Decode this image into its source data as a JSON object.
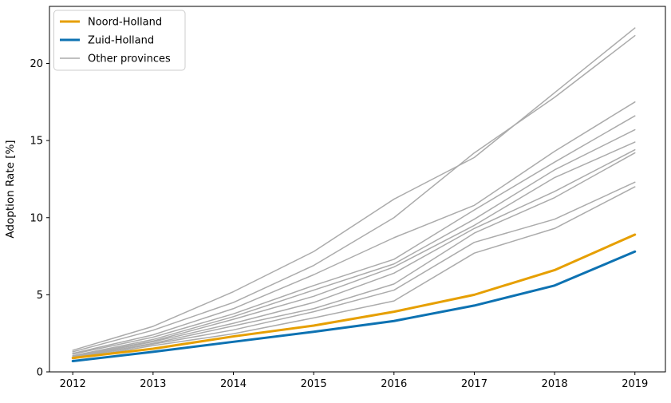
{
  "figure": {
    "ylabel": "Adoption Rate [%]"
  },
  "colors": {
    "noord_holland": "#E69F00",
    "zuid_holland": "#0D72B2",
    "other_provinces": "#ABABAB",
    "axis": "#000000",
    "legend_border": "#CCCCCC",
    "background": "#FFFFFF"
  },
  "chart_data": {
    "type": "line",
    "title": "",
    "xlabel": "",
    "ylabel": "Adoption Rate [%]",
    "x": [
      2012,
      2013,
      2014,
      2015,
      2016,
      2017,
      2018,
      2019
    ],
    "xticks": [
      "2012",
      "2013",
      "2014",
      "2015",
      "2016",
      "2017",
      "2018",
      "2019"
    ],
    "yticks": [
      "0",
      "5",
      "10",
      "15",
      "20"
    ],
    "ytick_values": [
      0,
      5,
      10,
      15,
      20
    ],
    "xlim": [
      2011.71,
      2019.38
    ],
    "ylim": [
      0,
      23.7
    ],
    "grid": false,
    "legend_position": "upper-left",
    "series": [
      {
        "name": "Noord-Holland",
        "color": "#E69F00",
        "width": 3,
        "zorder": 3,
        "values": [
          0.9,
          1.5,
          2.3,
          3.0,
          3.9,
          5.0,
          6.6,
          8.9
        ]
      },
      {
        "name": "Zuid-Holland",
        "color": "#0D72B2",
        "width": 3,
        "zorder": 2,
        "values": [
          0.7,
          1.3,
          1.95,
          2.6,
          3.3,
          4.3,
          5.6,
          7.8
        ]
      },
      {
        "name": "Other province 1",
        "color": "#ABABAB",
        "width": 1.5,
        "zorder": 1,
        "values": [
          1.4,
          2.95,
          5.2,
          7.8,
          11.2,
          13.9,
          18.1,
          22.3
        ]
      },
      {
        "name": "Other province 2",
        "color": "#ABABAB",
        "width": 1.5,
        "zorder": 1,
        "values": [
          1.3,
          2.7,
          4.5,
          6.9,
          10.0,
          14.2,
          17.8,
          21.8
        ]
      },
      {
        "name": "Other province 3",
        "color": "#ABABAB",
        "width": 1.5,
        "zorder": 1,
        "values": [
          1.2,
          2.4,
          4.1,
          6.3,
          8.7,
          10.8,
          14.3,
          17.5
        ]
      },
      {
        "name": "Other province 4",
        "color": "#ABABAB",
        "width": 1.5,
        "zorder": 1,
        "values": [
          1.15,
          2.25,
          3.76,
          5.6,
          7.3,
          10.5,
          13.6,
          16.6
        ]
      },
      {
        "name": "Other province 5",
        "color": "#ABABAB",
        "width": 1.5,
        "zorder": 1,
        "values": [
          1.05,
          2.1,
          3.58,
          5.3,
          7.0,
          9.9,
          13.1,
          15.7
        ]
      },
      {
        "name": "Other province 6",
        "color": "#ABABAB",
        "width": 1.5,
        "zorder": 1,
        "values": [
          1.0,
          2.0,
          3.41,
          4.9,
          6.8,
          9.5,
          12.6,
          14.9
        ]
      },
      {
        "name": "Other province 7",
        "color": "#ABABAB",
        "width": 1.5,
        "zorder": 1,
        "values": [
          0.95,
          1.95,
          3.15,
          4.5,
          6.4,
          9.3,
          11.7,
          14.4
        ]
      },
      {
        "name": "Other province 8",
        "color": "#ABABAB",
        "width": 1.5,
        "zorder": 1,
        "values": [
          0.92,
          1.85,
          2.98,
          4.1,
          5.7,
          9.0,
          11.3,
          14.2
        ]
      },
      {
        "name": "Other province 9",
        "color": "#ABABAB",
        "width": 1.5,
        "zorder": 1,
        "values": [
          0.9,
          1.8,
          2.72,
          3.9,
          5.3,
          8.4,
          9.9,
          12.3
        ]
      },
      {
        "name": "Other province 10",
        "color": "#ABABAB",
        "width": 1.5,
        "zorder": 1,
        "values": [
          0.85,
          1.7,
          2.47,
          3.5,
          4.6,
          7.7,
          9.3,
          12.0
        ]
      }
    ],
    "legend": [
      {
        "label": "Noord-Holland",
        "color": "#E69F00",
        "width": 3
      },
      {
        "label": "Zuid-Holland",
        "color": "#0D72B2",
        "width": 3
      },
      {
        "label": "Other provinces",
        "color": "#ABABAB",
        "width": 1.5
      }
    ]
  }
}
